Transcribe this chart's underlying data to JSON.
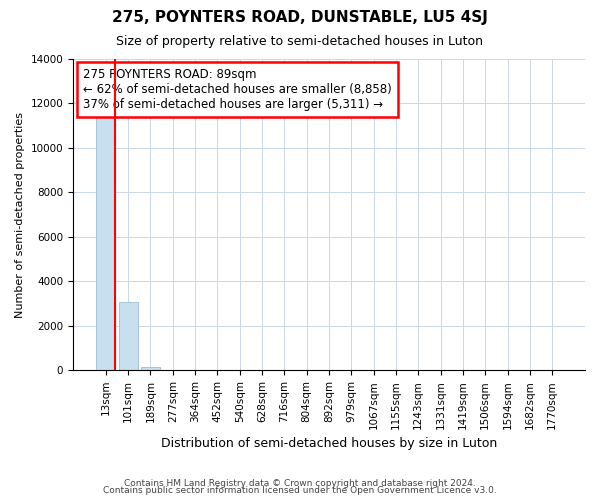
{
  "title": "275, POYNTERS ROAD, DUNSTABLE, LU5 4SJ",
  "subtitle": "Size of property relative to semi-detached houses in Luton",
  "xlabel": "Distribution of semi-detached houses by size in Luton",
  "ylabel": "Number of semi-detached properties",
  "footnote1": "Contains HM Land Registry data © Crown copyright and database right 2024.",
  "footnote2": "Contains public sector information licensed under the Open Government Licence v3.0.",
  "annotation_line1": "275 POYNTERS ROAD: 89sqm",
  "annotation_line2": "← 62% of semi-detached houses are smaller (8,858)",
  "annotation_line3": "37% of semi-detached houses are larger (5,311) →",
  "bar_color": "#c8dff0",
  "bar_edge_color": "#9bbfd8",
  "vline_color": "red",
  "property_bin_index": 0,
  "x_labels": [
    "13sqm",
    "101sqm",
    "189sqm",
    "277sqm",
    "364sqm",
    "452sqm",
    "540sqm",
    "628sqm",
    "716sqm",
    "804sqm",
    "892sqm",
    "979sqm",
    "1067sqm",
    "1155sqm",
    "1243sqm",
    "1331sqm",
    "1419sqm",
    "1506sqm",
    "1594sqm",
    "1682sqm",
    "1770sqm"
  ],
  "bar_values": [
    11400,
    3050,
    150,
    0,
    0,
    0,
    0,
    0,
    0,
    0,
    0,
    0,
    0,
    0,
    0,
    0,
    0,
    0,
    0,
    0,
    0
  ],
  "ylim": [
    0,
    14000
  ],
  "yticks": [
    0,
    2000,
    4000,
    6000,
    8000,
    10000,
    12000,
    14000
  ],
  "background_color": "#ffffff",
  "grid_color": "#c8d8e8",
  "title_fontsize": 11,
  "subtitle_fontsize": 9,
  "ylabel_fontsize": 8,
  "xlabel_fontsize": 9,
  "tick_fontsize": 7.5,
  "annotation_fontsize": 8.5
}
